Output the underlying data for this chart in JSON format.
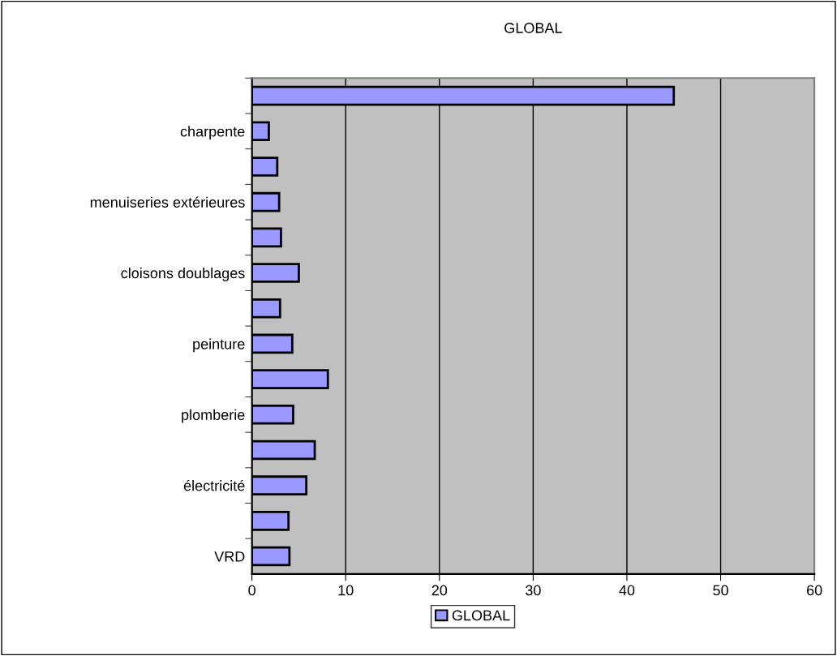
{
  "chart_data": {
    "type": "bar",
    "orientation": "horizontal",
    "title": "GLOBAL",
    "categories": [
      null,
      "charpente",
      null,
      "menuiseries extérieures",
      null,
      "cloisons doublages",
      null,
      "peinture",
      null,
      "plomberie",
      null,
      "électricité",
      null,
      "VRD"
    ],
    "series": [
      {
        "name": "GLOBAL",
        "color": "#9999ff",
        "values": [
          45,
          1.8,
          2.7,
          2.9,
          3.1,
          5.0,
          3.0,
          4.3,
          8.1,
          4.4,
          6.7,
          5.8,
          3.9,
          4.0
        ]
      }
    ],
    "xlim": [
      0,
      60
    ],
    "xticks": [
      0,
      10,
      20,
      30,
      40,
      50,
      60
    ],
    "grid": "x",
    "legend": "bottom"
  }
}
